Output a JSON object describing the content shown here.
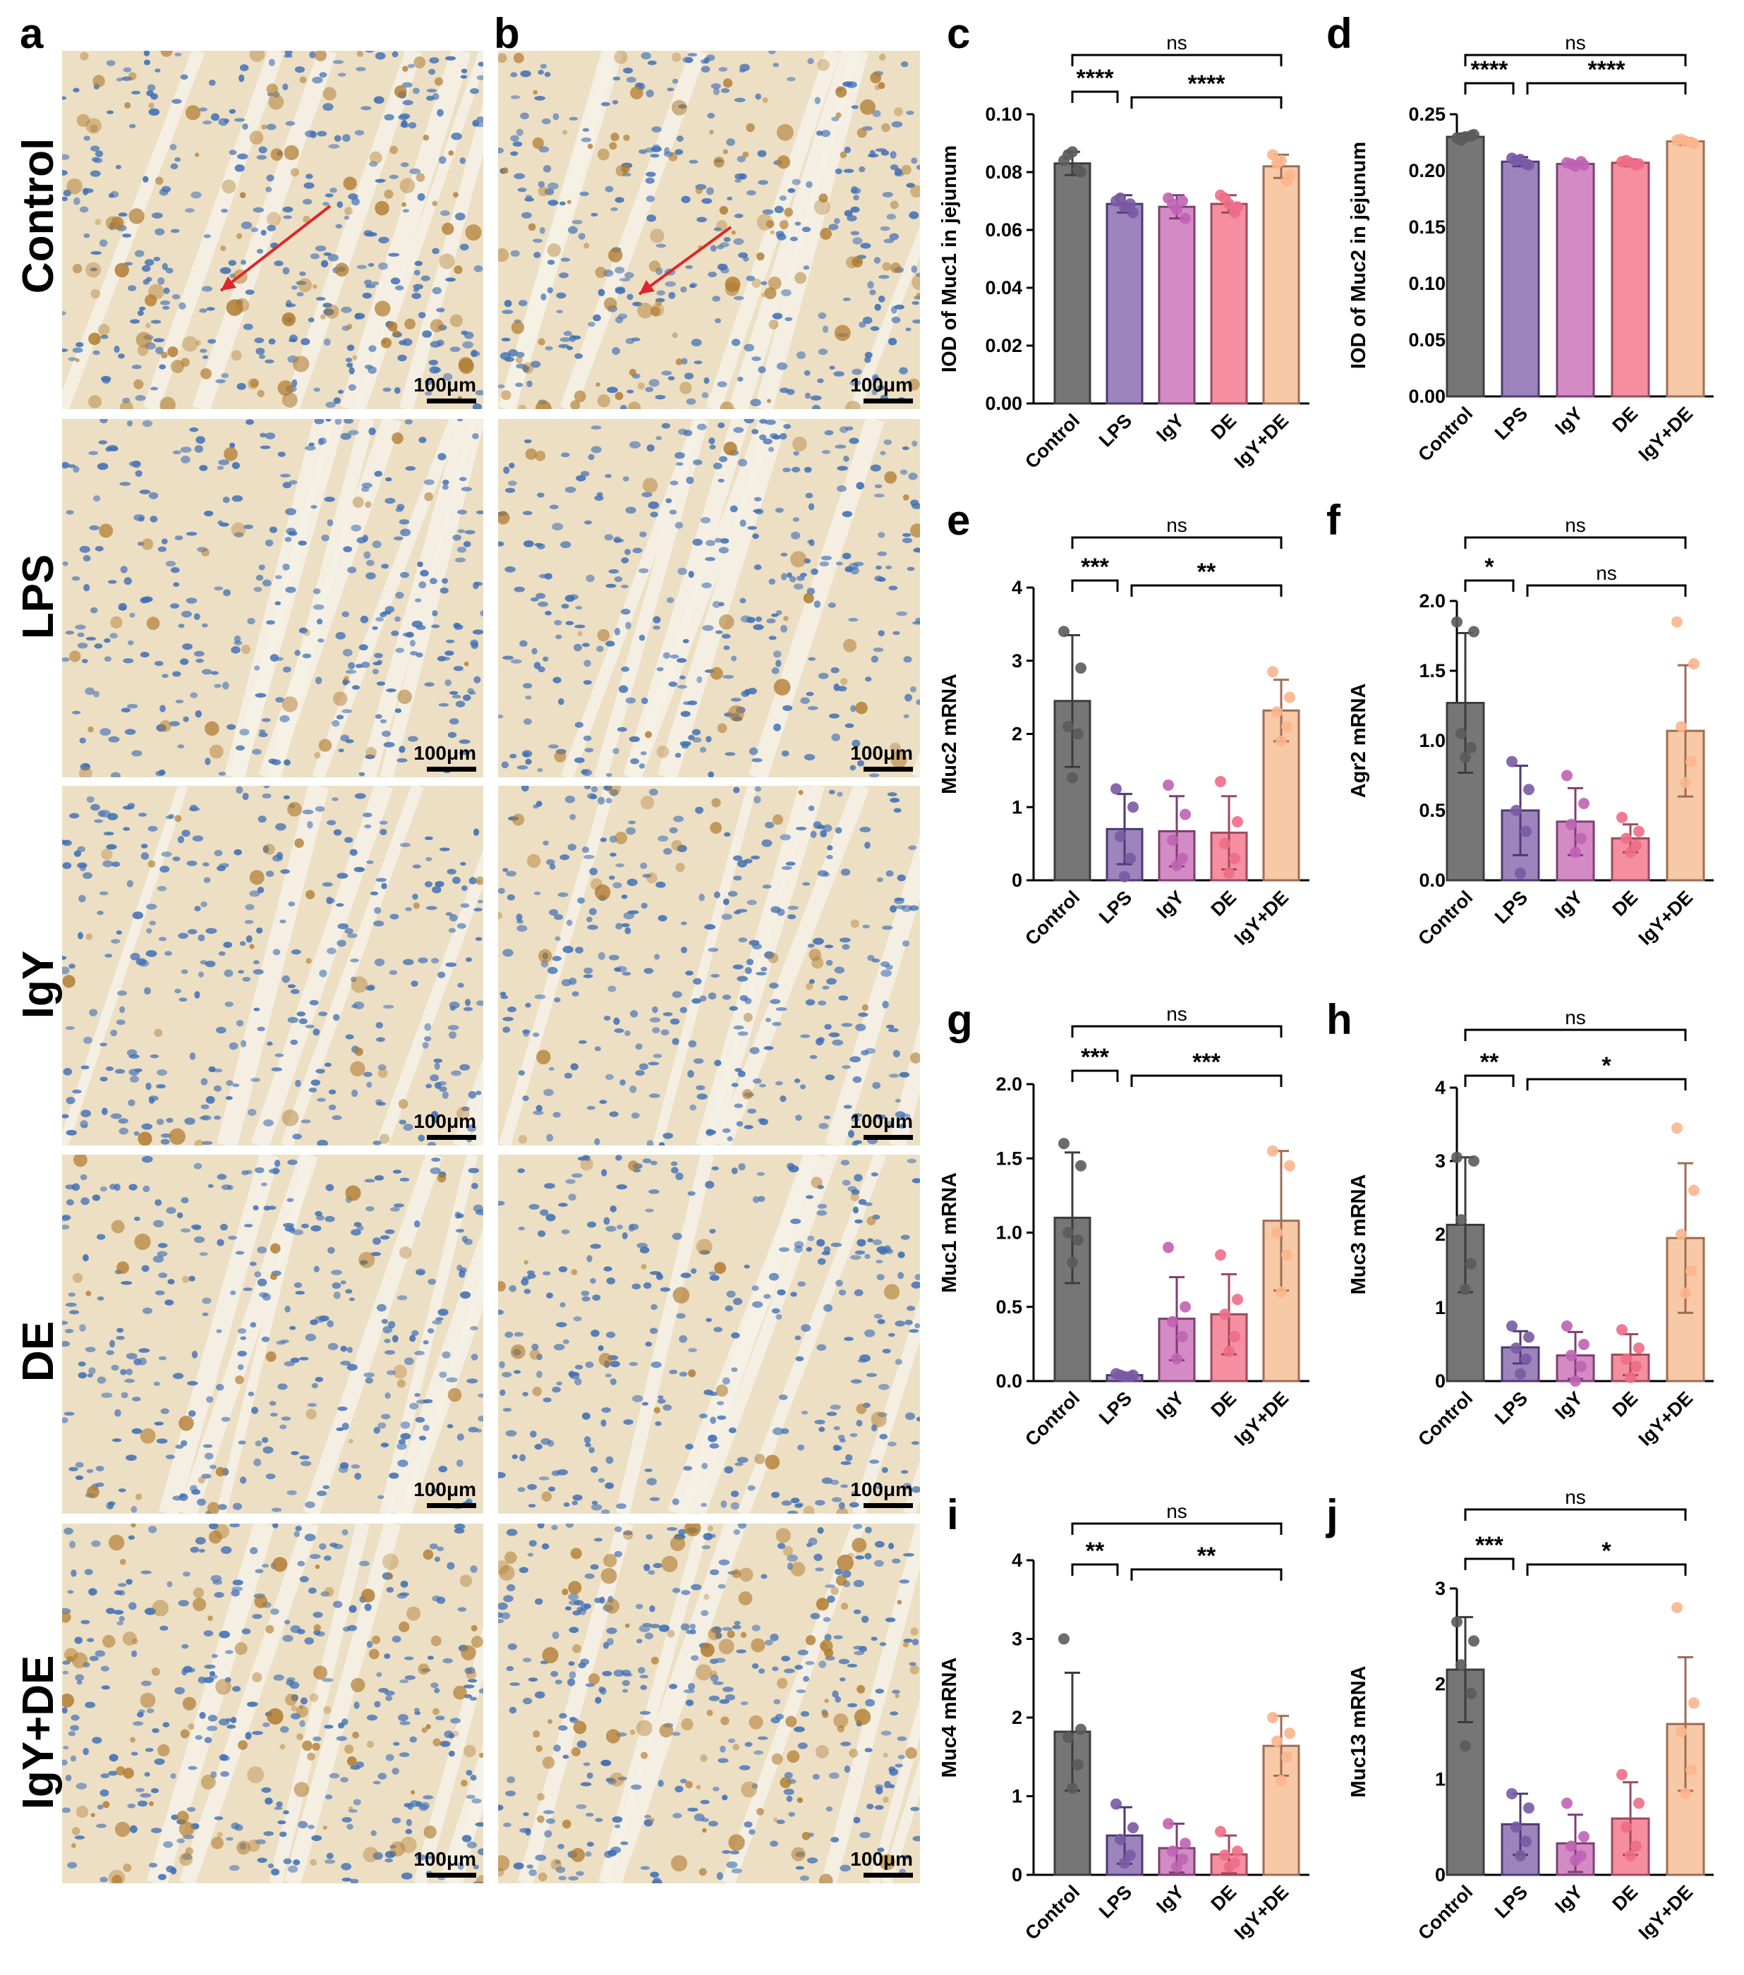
{
  "figure": {
    "letters": [
      "a",
      "b",
      "c",
      "d",
      "e",
      "f",
      "g",
      "h",
      "i",
      "j"
    ],
    "row_labels": [
      "Control",
      "LPS",
      "IgY",
      "DE",
      "IgY+DE"
    ],
    "scale_bar_label": "100μm",
    "tissue_colors": {
      "background": "#ecdfc4",
      "nuclei": "#3f6fb6",
      "stain": "#b07a2e",
      "lumen": "#f5f1e6",
      "arrow": "#e0252b"
    }
  },
  "chart_data": [
    {
      "panel": "c",
      "type": "bar",
      "categories": [
        "Control",
        "LPS",
        "IgY",
        "DE",
        "IgY+DE"
      ],
      "values": [
        0.083,
        0.069,
        0.068,
        0.069,
        0.082
      ],
      "errors": [
        0.004,
        0.003,
        0.004,
        0.003,
        0.004
      ],
      "points": [
        [
          0.084,
          0.08,
          0.086,
          0.081,
          0.087
        ],
        [
          0.07,
          0.066,
          0.071,
          0.069,
          0.068
        ],
        [
          0.071,
          0.064,
          0.069,
          0.07,
          0.067
        ],
        [
          0.072,
          0.068,
          0.071,
          0.066,
          0.069
        ],
        [
          0.086,
          0.079,
          0.083,
          0.077,
          0.084
        ]
      ],
      "ylabel": "IOD of Muc1 in jejunum",
      "xlabel": "",
      "title": "",
      "ylim": [
        0,
        0.1
      ],
      "yticks": [
        "0.00",
        "0.02",
        "0.04",
        "0.06",
        "0.08",
        "0.10"
      ],
      "brackets": [
        {
          "from": 0,
          "to": 4,
          "label": "ns"
        },
        {
          "from": 0,
          "to": 1,
          "label": "****"
        },
        {
          "from": 1,
          "to": 4,
          "label": "****"
        }
      ]
    },
    {
      "panel": "d",
      "type": "bar",
      "categories": [
        "Control",
        "LPS",
        "IgY",
        "DE",
        "IgY+DE"
      ],
      "values": [
        0.23,
        0.208,
        0.206,
        0.207,
        0.226
      ],
      "errors": [
        0.003,
        0.004,
        0.002,
        0.003,
        0.003
      ],
      "points": [
        [
          0.229,
          0.232,
          0.227,
          0.231,
          0.23
        ],
        [
          0.211,
          0.205,
          0.209,
          0.206,
          0.21
        ],
        [
          0.207,
          0.205,
          0.206,
          0.208,
          0.204
        ],
        [
          0.208,
          0.206,
          0.209,
          0.205,
          0.207
        ],
        [
          0.227,
          0.224,
          0.228,
          0.225,
          0.226
        ]
      ],
      "ylabel": "IOD of Muc2 in jejunum",
      "xlabel": "",
      "title": "",
      "ylim": [
        0,
        0.25
      ],
      "yticks": [
        "0.00",
        "0.05",
        "0.10",
        "0.15",
        "0.20",
        "0.25"
      ],
      "brackets": [
        {
          "from": 0,
          "to": 4,
          "label": "ns"
        },
        {
          "from": 0,
          "to": 1,
          "label": "****"
        },
        {
          "from": 1,
          "to": 4,
          "label": "****"
        }
      ]
    },
    {
      "panel": "e",
      "type": "bar",
      "categories": [
        "Control",
        "LPS",
        "IgY",
        "DE",
        "IgY+DE"
      ],
      "values": [
        2.45,
        0.7,
        0.67,
        0.65,
        2.32
      ],
      "errors": [
        0.9,
        0.48,
        0.48,
        0.5,
        0.42
      ],
      "points": [
        [
          3.4,
          2.9,
          2.1,
          2.0,
          1.4
        ],
        [
          1.25,
          1.0,
          0.6,
          0.3,
          0.05
        ],
        [
          1.3,
          0.9,
          0.55,
          0.3,
          0.2
        ],
        [
          1.35,
          0.8,
          0.5,
          0.3,
          0.1
        ],
        [
          2.85,
          2.5,
          2.3,
          2.1,
          1.9
        ]
      ],
      "ylabel": "Muc2 mRNA",
      "xlabel": "",
      "title": "",
      "ylim": [
        0,
        4
      ],
      "yticks": [
        "0",
        "1",
        "2",
        "3",
        "4"
      ],
      "brackets": [
        {
          "from": 0,
          "to": 4,
          "label": "ns"
        },
        {
          "from": 0,
          "to": 1,
          "label": "***"
        },
        {
          "from": 1,
          "to": 4,
          "label": "**"
        }
      ]
    },
    {
      "panel": "f",
      "type": "bar",
      "categories": [
        "Control",
        "LPS",
        "IgY",
        "DE",
        "IgY+DE"
      ],
      "values": [
        1.27,
        0.5,
        0.42,
        0.3,
        1.07
      ],
      "errors": [
        0.5,
        0.32,
        0.24,
        0.1,
        0.47
      ],
      "points": [
        [
          1.85,
          1.78,
          1.05,
          0.95,
          0.88
        ],
        [
          0.85,
          0.65,
          0.5,
          0.35,
          0.05
        ],
        [
          0.75,
          0.55,
          0.4,
          0.3,
          0.2
        ],
        [
          0.45,
          0.35,
          0.3,
          0.25,
          0.2
        ],
        [
          1.85,
          1.55,
          1.1,
          0.85,
          0.7
        ]
      ],
      "ylabel": "Agr2 mRNA",
      "xlabel": "",
      "title": "",
      "ylim": [
        0,
        2.0
      ],
      "yticks": [
        "0.0",
        "0.5",
        "1.0",
        "1.5",
        "2.0"
      ],
      "brackets": [
        {
          "from": 0,
          "to": 4,
          "label": "ns"
        },
        {
          "from": 0,
          "to": 1,
          "label": "*"
        },
        {
          "from": 1,
          "to": 4,
          "label": "ns"
        }
      ]
    },
    {
      "panel": "g",
      "type": "bar",
      "categories": [
        "Control",
        "LPS",
        "IgY",
        "DE",
        "IgY+DE"
      ],
      "values": [
        1.1,
        0.04,
        0.42,
        0.45,
        1.08
      ],
      "errors": [
        0.44,
        0.01,
        0.28,
        0.27,
        0.47
      ],
      "points": [
        [
          1.6,
          1.45,
          1.0,
          0.95,
          0.8
        ],
        [
          0.05,
          0.04,
          0.04,
          0.03,
          0.03
        ],
        [
          0.9,
          0.5,
          0.4,
          0.3,
          0.15
        ],
        [
          0.85,
          0.55,
          0.45,
          0.3,
          0.2
        ],
        [
          1.55,
          1.45,
          1.0,
          0.85,
          0.6
        ]
      ],
      "ylabel": "Muc1 mRNA",
      "xlabel": "",
      "title": "",
      "ylim": [
        0,
        2.0
      ],
      "yticks": [
        "0.0",
        "0.5",
        "1.0",
        "1.5",
        "2.0"
      ],
      "brackets": [
        {
          "from": 0,
          "to": 4,
          "label": "ns"
        },
        {
          "from": 0,
          "to": 1,
          "label": "***"
        },
        {
          "from": 1,
          "to": 4,
          "label": "***"
        }
      ]
    },
    {
      "panel": "h",
      "type": "bar",
      "categories": [
        "Control",
        "LPS",
        "IgY",
        "DE",
        "IgY+DE"
      ],
      "values": [
        2.13,
        0.46,
        0.35,
        0.36,
        1.95
      ],
      "errors": [
        0.92,
        0.22,
        0.32,
        0.28,
        1.02
      ],
      "points": [
        [
          3.05,
          3.0,
          2.2,
          1.6,
          1.25
        ],
        [
          0.75,
          0.6,
          0.45,
          0.3,
          0.1
        ],
        [
          0.75,
          0.5,
          0.35,
          0.2,
          0.0
        ],
        [
          0.7,
          0.45,
          0.3,
          0.2,
          0.05
        ],
        [
          3.45,
          2.6,
          2.0,
          1.5,
          1.2
        ]
      ],
      "ylabel": "Muc3 mRNA",
      "xlabel": "",
      "title": "",
      "ylim": [
        0,
        4
      ],
      "yticks": [
        "0",
        "1",
        "2",
        "3",
        "4"
      ],
      "brackets": [
        {
          "from": 0,
          "to": 4,
          "label": "ns"
        },
        {
          "from": 0,
          "to": 1,
          "label": "**"
        },
        {
          "from": 1,
          "to": 4,
          "label": "*"
        }
      ]
    },
    {
      "panel": "i",
      "type": "bar",
      "categories": [
        "Control",
        "LPS",
        "IgY",
        "DE",
        "IgY+DE"
      ],
      "values": [
        1.82,
        0.5,
        0.34,
        0.26,
        1.64
      ],
      "errors": [
        0.75,
        0.36,
        0.31,
        0.24,
        0.38
      ],
      "points": [
        [
          3.0,
          1.85,
          1.75,
          1.4,
          1.1
        ],
        [
          0.9,
          0.6,
          0.45,
          0.25,
          0.15
        ],
        [
          0.65,
          0.4,
          0.3,
          0.2,
          0.1
        ],
        [
          0.55,
          0.3,
          0.25,
          0.15,
          0.1
        ],
        [
          2.0,
          1.8,
          1.7,
          1.5,
          1.2
        ]
      ],
      "ylabel": "Muc4 mRNA",
      "xlabel": "",
      "title": "",
      "ylim": [
        0,
        4
      ],
      "yticks": [
        "0",
        "1",
        "2",
        "3",
        "4"
      ],
      "brackets": [
        {
          "from": 0,
          "to": 4,
          "label": "ns"
        },
        {
          "from": 0,
          "to": 1,
          "label": "**"
        },
        {
          "from": 1,
          "to": 4,
          "label": "**"
        }
      ]
    },
    {
      "panel": "j",
      "type": "bar",
      "categories": [
        "Control",
        "LPS",
        "IgY",
        "DE",
        "IgY+DE"
      ],
      "values": [
        2.15,
        0.53,
        0.33,
        0.59,
        1.58
      ],
      "errors": [
        0.55,
        0.32,
        0.3,
        0.38,
        0.7
      ],
      "points": [
        [
          2.65,
          2.45,
          2.2,
          1.9,
          1.35
        ],
        [
          0.85,
          0.7,
          0.5,
          0.35,
          0.2
        ],
        [
          0.75,
          0.4,
          0.3,
          0.2,
          0.15
        ],
        [
          1.05,
          0.75,
          0.5,
          0.3,
          0.2
        ],
        [
          2.8,
          1.8,
          1.5,
          1.1,
          0.85
        ]
      ],
      "ylabel": "Muc13 mRNA",
      "xlabel": "",
      "title": "",
      "ylim": [
        0,
        3
      ],
      "yticks": [
        "0",
        "1",
        "2",
        "3"
      ],
      "brackets": [
        {
          "from": 0,
          "to": 4,
          "label": "ns"
        },
        {
          "from": 0,
          "to": 1,
          "label": "***"
        },
        {
          "from": 1,
          "to": 4,
          "label": "*"
        }
      ]
    }
  ],
  "group_colors": {
    "bars": [
      "#767676",
      "#9d84bd",
      "#d48bc5",
      "#f58fa0",
      "#f8c9a6"
    ],
    "edges": [
      "#3c3c3c",
      "#4e3a72",
      "#7d3f74",
      "#9c4a5b",
      "#9b6d55"
    ],
    "dots": [
      "#5b5b5b",
      "#7a5aa3",
      "#c063b4",
      "#ee6d86",
      "#fbb58c"
    ]
  }
}
